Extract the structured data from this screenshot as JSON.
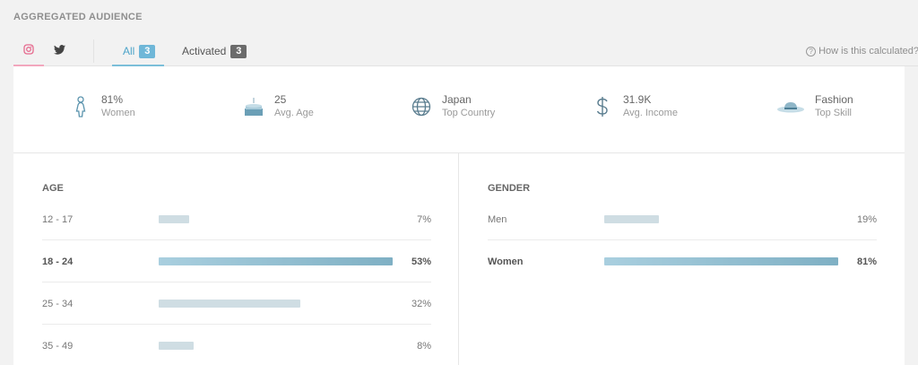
{
  "section_title": "AGGREGATED AUDIENCE",
  "tabs": {
    "social": [
      {
        "name": "instagram-icon",
        "active": true
      },
      {
        "name": "twitter-icon",
        "active": false
      }
    ],
    "all": {
      "label": "All",
      "count": "3"
    },
    "activated": {
      "label": "Activated",
      "count": "3"
    },
    "help": "How is this calculated?"
  },
  "summary": [
    {
      "icon": "woman-icon",
      "value": "81%",
      "label": "Women"
    },
    {
      "icon": "birthday-cake-icon",
      "value": "25",
      "label": "Avg. Age"
    },
    {
      "icon": "globe-icon",
      "value": "Japan",
      "label": "Top Country"
    },
    {
      "icon": "dollar-icon",
      "value": "31.9K",
      "label": "Avg. Income"
    },
    {
      "icon": "hat-icon",
      "value": "Fashion",
      "label": "Top Skill"
    }
  ],
  "age": {
    "title": "AGE",
    "rows": [
      {
        "label": "12 - 17",
        "pct": "7%",
        "value": 7,
        "highlight": false
      },
      {
        "label": "18 - 24",
        "pct": "53%",
        "value": 53,
        "highlight": true
      },
      {
        "label": "25 - 34",
        "pct": "32%",
        "value": 32,
        "highlight": false
      },
      {
        "label": "35 - 49",
        "pct": "8%",
        "value": 8,
        "highlight": false
      }
    ]
  },
  "gender": {
    "title": "GENDER",
    "rows": [
      {
        "label": "Men",
        "pct": "19%",
        "value": 19,
        "highlight": false
      },
      {
        "label": "Women",
        "pct": "81%",
        "value": 81,
        "highlight": true
      }
    ]
  },
  "colors": {
    "bar_normal": "#cfdde3",
    "bar_highlight_start": "#a9cfdf",
    "bar_highlight_end": "#7fb0c4",
    "accent": "#4da4c9",
    "instagram": "#e66a8e"
  }
}
